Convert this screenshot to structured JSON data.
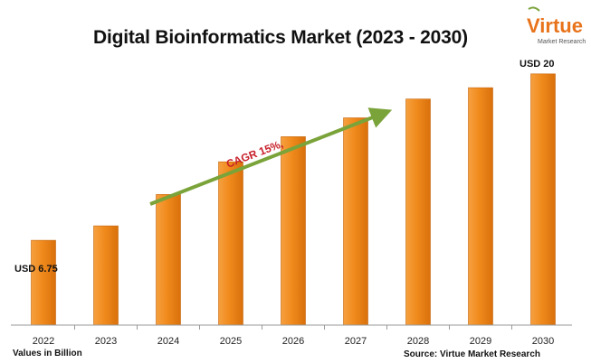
{
  "chart_data": {
    "type": "bar",
    "title": "Digital Bioinformatics Market (2023 - 2030)",
    "categories": [
      "2022",
      "2023",
      "2024",
      "2025",
      "2026",
      "2027",
      "2028",
      "2029",
      "2030"
    ],
    "values": [
      6.75,
      7.9,
      10.4,
      13.0,
      15.0,
      16.5,
      18.0,
      18.9,
      20.0
    ],
    "value_labels": {
      "first": "USD 6.75",
      "last": "USD 20"
    },
    "annotation": "CAGR 15%,",
    "units_note": "Values in Billion",
    "source": "Source: Virtue Market Research",
    "ylim": [
      0,
      22
    ],
    "grid": false,
    "bar_color": "#f08a1c",
    "arrow_color": "#7aa33a",
    "annotation_color": "#c8202a"
  },
  "logo": {
    "word": "Virtue",
    "sub": "Market Research"
  }
}
